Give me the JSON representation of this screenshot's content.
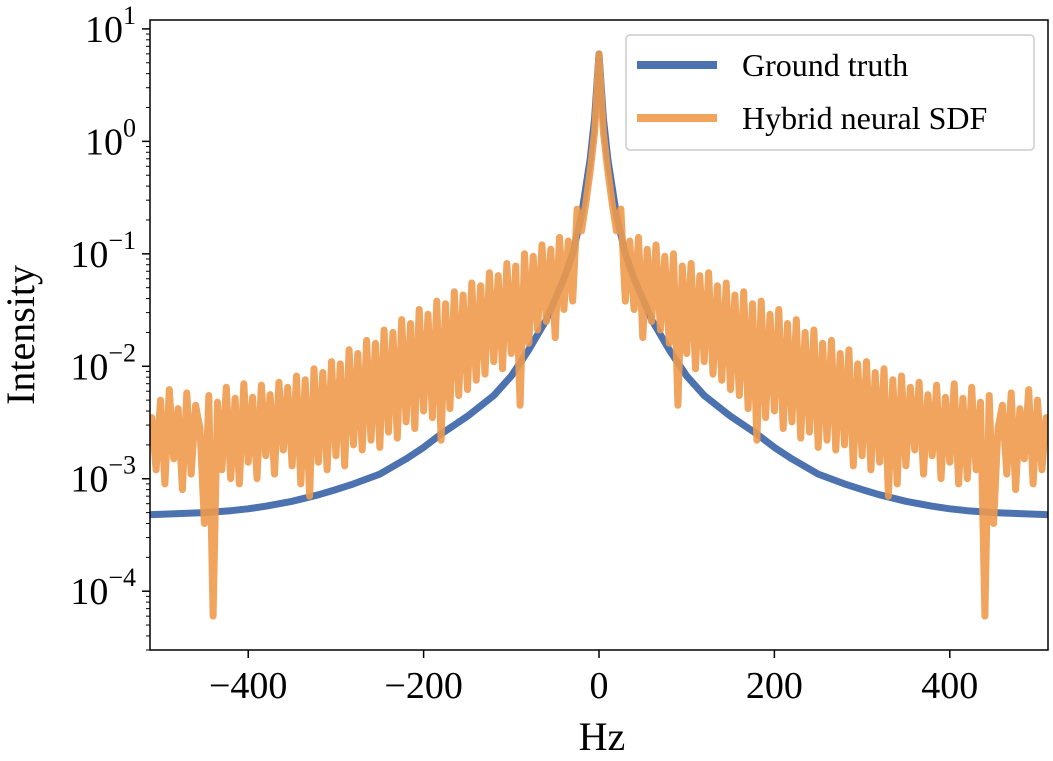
{
  "chart_data": {
    "type": "line",
    "title": "",
    "xlabel": "Hz",
    "ylabel": "Intensity",
    "xlim": [
      -512,
      512
    ],
    "ylim": [
      3e-05,
      12
    ],
    "yscale": "log",
    "grid": false,
    "legend_position": "top-right",
    "x_ticks": [
      {
        "value": -400,
        "label": "−400"
      },
      {
        "value": -200,
        "label": "−200"
      },
      {
        "value": 0,
        "label": "0"
      },
      {
        "value": 200,
        "label": "200"
      },
      {
        "value": 400,
        "label": "400"
      }
    ],
    "y_ticks": [
      {
        "value": 0.0001,
        "base": "10",
        "exp": "−4"
      },
      {
        "value": 0.001,
        "base": "10",
        "exp": "−3"
      },
      {
        "value": 0.01,
        "base": "10",
        "exp": "−2"
      },
      {
        "value": 0.1,
        "base": "10",
        "exp": "−1"
      },
      {
        "value": 1,
        "base": "10",
        "exp": "0"
      },
      {
        "value": 10,
        "base": "10",
        "exp": "1"
      }
    ],
    "series": [
      {
        "name": "Ground truth",
        "color": "#4c72b0",
        "x": [
          -510,
          -480,
          -450,
          -420,
          -400,
          -380,
          -350,
          -320,
          -300,
          -280,
          -250,
          -220,
          -200,
          -180,
          -150,
          -120,
          -100,
          -80,
          -60,
          -40,
          -30,
          -20,
          -10,
          -5,
          0,
          5,
          10,
          20,
          30,
          40,
          60,
          80,
          100,
          120,
          150,
          180,
          200,
          220,
          250,
          280,
          300,
          320,
          350,
          380,
          400,
          420,
          450,
          480,
          510
        ],
        "y": [
          0.00048,
          0.00049,
          0.0005,
          0.00052,
          0.00054,
          0.00057,
          0.00063,
          0.00072,
          0.0008,
          0.0009,
          0.0011,
          0.0015,
          0.0019,
          0.0025,
          0.0036,
          0.0055,
          0.0082,
          0.014,
          0.026,
          0.06,
          0.1,
          0.22,
          0.7,
          1.6,
          6.0,
          1.6,
          0.7,
          0.22,
          0.1,
          0.06,
          0.026,
          0.014,
          0.0082,
          0.0055,
          0.0036,
          0.0025,
          0.0019,
          0.0015,
          0.0011,
          0.0009,
          0.0008,
          0.00072,
          0.00063,
          0.00057,
          0.00054,
          0.00052,
          0.0005,
          0.00049,
          0.00048
        ]
      },
      {
        "name": "Hybrid neural SDF",
        "color": "#ee9a4d",
        "x": [
          -510,
          -505,
          -500,
          -495,
          -490,
          -485,
          -480,
          -475,
          -470,
          -465,
          -460,
          -455,
          -450,
          -445,
          -440,
          -435,
          -430,
          -425,
          -420,
          -415,
          -410,
          -405,
          -400,
          -395,
          -390,
          -385,
          -380,
          -375,
          -370,
          -365,
          -360,
          -355,
          -350,
          -345,
          -340,
          -335,
          -330,
          -325,
          -320,
          -315,
          -310,
          -305,
          -300,
          -295,
          -290,
          -285,
          -280,
          -275,
          -270,
          -265,
          -260,
          -255,
          -250,
          -245,
          -240,
          -235,
          -230,
          -225,
          -220,
          -215,
          -210,
          -205,
          -200,
          -195,
          -190,
          -185,
          -180,
          -175,
          -170,
          -165,
          -160,
          -155,
          -150,
          -145,
          -140,
          -135,
          -130,
          -125,
          -120,
          -115,
          -110,
          -105,
          -100,
          -95,
          -90,
          -85,
          -80,
          -75,
          -70,
          -65,
          -60,
          -55,
          -50,
          -45,
          -40,
          -35,
          -30,
          -25,
          -20,
          -15,
          -10,
          -5,
          0,
          5,
          10,
          15,
          20,
          25,
          30,
          35,
          40,
          45,
          50,
          55,
          60,
          65,
          70,
          75,
          80,
          85,
          90,
          95,
          100,
          105,
          110,
          115,
          120,
          125,
          130,
          135,
          140,
          145,
          150,
          155,
          160,
          165,
          170,
          175,
          180,
          185,
          190,
          195,
          200,
          205,
          210,
          215,
          220,
          225,
          230,
          235,
          240,
          245,
          250,
          255,
          260,
          265,
          270,
          275,
          280,
          285,
          290,
          295,
          300,
          305,
          310,
          315,
          320,
          325,
          330,
          335,
          340,
          345,
          350,
          355,
          360,
          365,
          370,
          375,
          380,
          385,
          390,
          395,
          400,
          405,
          410,
          415,
          420,
          425,
          430,
          435,
          440,
          445,
          450,
          455,
          460,
          465,
          470,
          475,
          480,
          485,
          490,
          495,
          500,
          505,
          510
        ],
        "y": [
          0.0035,
          0.0012,
          0.005,
          0.0009,
          0.0062,
          0.0015,
          0.0042,
          0.0008,
          0.0058,
          0.0011,
          0.0045,
          0.0028,
          0.0004,
          0.0055,
          6e-05,
          0.0048,
          0.0012,
          0.0065,
          0.001,
          0.0052,
          0.0009,
          0.007,
          0.0014,
          0.0053,
          0.001,
          0.0068,
          0.0016,
          0.0056,
          0.0011,
          0.0072,
          0.0018,
          0.0065,
          0.0013,
          0.0082,
          0.0009,
          0.0076,
          0.0007,
          0.0095,
          0.0014,
          0.0088,
          0.0012,
          0.011,
          0.0016,
          0.0105,
          0.0013,
          0.014,
          0.002,
          0.013,
          0.0018,
          0.017,
          0.0022,
          0.016,
          0.0019,
          0.021,
          0.0026,
          0.02,
          0.0023,
          0.026,
          0.0032,
          0.024,
          0.0028,
          0.032,
          0.004,
          0.029,
          0.0035,
          0.038,
          0.0022,
          0.036,
          0.0042,
          0.046,
          0.0055,
          0.043,
          0.0062,
          0.055,
          0.0075,
          0.052,
          0.0085,
          0.068,
          0.011,
          0.064,
          0.0095,
          0.082,
          0.013,
          0.078,
          0.0045,
          0.1,
          0.016,
          0.095,
          0.021,
          0.12,
          0.025,
          0.11,
          0.018,
          0.14,
          0.032,
          0.13,
          0.038,
          0.25,
          0.16,
          0.28,
          0.55,
          1.2,
          6.0,
          1.2,
          0.55,
          0.28,
          0.16,
          0.25,
          0.038,
          0.13,
          0.032,
          0.14,
          0.018,
          0.11,
          0.025,
          0.12,
          0.021,
          0.095,
          0.016,
          0.1,
          0.0045,
          0.078,
          0.013,
          0.082,
          0.0095,
          0.064,
          0.011,
          0.068,
          0.0085,
          0.052,
          0.0075,
          0.055,
          0.0062,
          0.043,
          0.0055,
          0.046,
          0.0042,
          0.036,
          0.0022,
          0.038,
          0.0035,
          0.029,
          0.004,
          0.032,
          0.0028,
          0.024,
          0.0032,
          0.026,
          0.0023,
          0.02,
          0.0026,
          0.021,
          0.0019,
          0.016,
          0.0022,
          0.017,
          0.0018,
          0.013,
          0.002,
          0.014,
          0.0013,
          0.0105,
          0.0016,
          0.011,
          0.0012,
          0.0088,
          0.0014,
          0.0095,
          0.0007,
          0.0076,
          0.0009,
          0.0082,
          0.0013,
          0.0065,
          0.0018,
          0.0072,
          0.0011,
          0.0056,
          0.0016,
          0.0068,
          0.001,
          0.0053,
          0.0014,
          0.007,
          0.0009,
          0.0052,
          0.001,
          0.0065,
          0.0012,
          0.0048,
          6e-05,
          0.0055,
          0.0004,
          0.0028,
          0.0045,
          0.0011,
          0.0058,
          0.0008,
          0.0042,
          0.0015,
          0.0062,
          0.0009,
          0.005,
          0.0012,
          0.0035
        ]
      }
    ]
  }
}
